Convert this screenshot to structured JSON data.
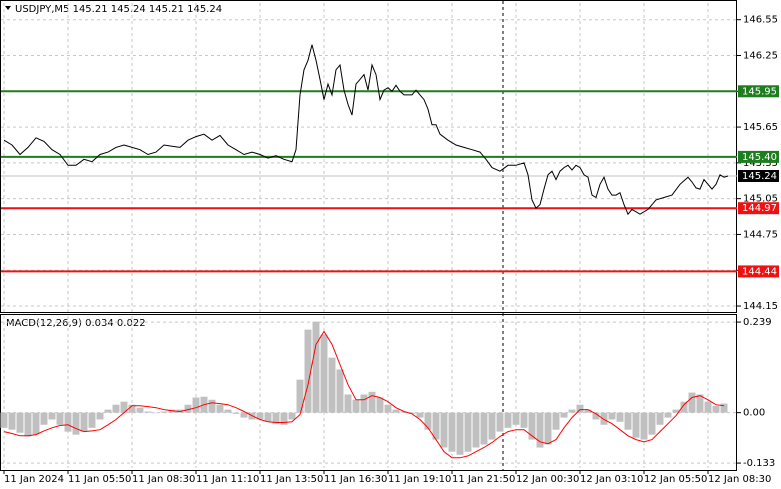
{
  "chart_data": [
    {
      "type": "line",
      "title": "USDJPY,M5  145.21 145.24 145.21 145.24",
      "color": "#000000",
      "grid": true,
      "xlim": [
        0,
        366
      ],
      "ylim": [
        144.1,
        146.69
      ],
      "yticks": [
        146.55,
        146.25,
        145.95,
        145.65,
        145.35,
        145.05,
        144.75,
        144.45,
        144.15
      ],
      "x": [
        0,
        4,
        8,
        12,
        16,
        20,
        24,
        28,
        32,
        36,
        40,
        44,
        48,
        52,
        56,
        60,
        64,
        68,
        72,
        76,
        80,
        84,
        88,
        92,
        96,
        100,
        104,
        108,
        112,
        116,
        120,
        124,
        128,
        132,
        136,
        140,
        144,
        146,
        148,
        150,
        152,
        154,
        156,
        158,
        160,
        162,
        164,
        166,
        168,
        170,
        172,
        174,
        176,
        178,
        180,
        182,
        184,
        186,
        188,
        190,
        192,
        194,
        196,
        198,
        200,
        202,
        204,
        206,
        208,
        210,
        212,
        214,
        216,
        218,
        222,
        226,
        230,
        234,
        238,
        241,
        244,
        248,
        252,
        256,
        260,
        262,
        264,
        266,
        268,
        270,
        272,
        274,
        276,
        278,
        280,
        282,
        284,
        286,
        288,
        290,
        292,
        294,
        296,
        298,
        300,
        302,
        304,
        306,
        308,
        310,
        312,
        314,
        318,
        322,
        326,
        330,
        334,
        338,
        342,
        344,
        346,
        348,
        350,
        352,
        354,
        356,
        358,
        360,
        362
      ],
      "values": [
        145.54,
        145.5,
        145.42,
        145.48,
        145.56,
        145.53,
        145.46,
        145.42,
        145.33,
        145.33,
        145.38,
        145.36,
        145.42,
        145.44,
        145.48,
        145.5,
        145.48,
        145.46,
        145.42,
        145.44,
        145.5,
        145.49,
        145.48,
        145.54,
        145.57,
        145.59,
        145.54,
        145.58,
        145.5,
        145.46,
        145.42,
        145.44,
        145.42,
        145.39,
        145.41,
        145.38,
        145.36,
        145.46,
        145.92,
        146.13,
        146.21,
        146.34,
        146.21,
        146.05,
        145.88,
        146.01,
        145.92,
        146.13,
        146.17,
        145.96,
        145.84,
        145.75,
        146.01,
        146.05,
        146.09,
        145.96,
        146.17,
        146.09,
        145.88,
        145.96,
        145.98,
        145.95,
        146.0,
        145.95,
        145.92,
        145.92,
        145.92,
        145.96,
        145.92,
        145.88,
        145.8,
        145.67,
        145.67,
        145.59,
        145.54,
        145.5,
        145.48,
        145.46,
        145.44,
        145.38,
        145.31,
        145.28,
        145.33,
        145.33,
        145.35,
        145.25,
        145.04,
        144.97,
        145.0,
        145.13,
        145.25,
        145.28,
        145.21,
        145.28,
        145.31,
        145.33,
        145.29,
        145.33,
        145.31,
        145.25,
        145.23,
        145.08,
        145.06,
        145.17,
        145.23,
        145.13,
        145.08,
        145.08,
        145.1,
        145.0,
        144.92,
        144.96,
        144.92,
        144.96,
        145.04,
        145.06,
        145.08,
        145.17,
        145.23,
        145.19,
        145.14,
        145.13,
        145.21,
        145.17,
        145.13,
        145.17,
        145.25,
        145.23,
        145.24
      ],
      "last": {
        "value": 145.24,
        "label": "145.24",
        "color": "#c0c0c0"
      },
      "hlines": [
        {
          "value": 145.95,
          "label": "145.95",
          "color": "#1e7d1e"
        },
        {
          "value": 145.4,
          "label": "145.40",
          "color": "#1e7d1e"
        },
        {
          "value": 144.97,
          "label": "144.97",
          "color": "#ee1111"
        },
        {
          "value": 144.44,
          "label": "144.44",
          "color": "#ee1111"
        }
      ]
    },
    {
      "type": "macd",
      "title": "MACD(12,26,9) 0.034 0.022",
      "grid": true,
      "xlim": [
        0,
        366
      ],
      "ylim": [
        -0.146,
        0.255
      ],
      "yticks": [
        0.239,
        {
          "value": 0,
          "label": "0.00"
        },
        -0.133
      ],
      "xticks": [
        {
          "value": 0,
          "label": "11 Jan 2024"
        },
        {
          "value": 32,
          "label": "11 Jan 05:50"
        },
        {
          "value": 64,
          "label": "11 Jan 08:30"
        },
        {
          "value": 96,
          "label": "11 Jan 11:10"
        },
        {
          "value": 128,
          "label": "11 Jan 13:50"
        },
        {
          "value": 160,
          "label": "11 Jan 16:30"
        },
        {
          "value": 192,
          "label": "11 Jan 19:10"
        },
        {
          "value": 224,
          "label": "11 Jan 21:50"
        },
        {
          "value": 256,
          "label": "12 Jan 00:30"
        },
        {
          "value": 288,
          "label": "12 Jan 03:10"
        },
        {
          "value": 320,
          "label": "12 Jan 05:50"
        },
        {
          "value": 352,
          "label": "12 Jan 08:30"
        }
      ],
      "x": [
        0,
        4,
        8,
        12,
        16,
        20,
        24,
        28,
        32,
        36,
        40,
        44,
        48,
        52,
        56,
        60,
        64,
        68,
        72,
        76,
        80,
        84,
        88,
        92,
        96,
        100,
        104,
        108,
        112,
        116,
        120,
        124,
        128,
        132,
        136,
        140,
        144,
        148,
        152,
        156,
        160,
        164,
        168,
        172,
        176,
        180,
        184,
        188,
        192,
        196,
        200,
        204,
        208,
        212,
        216,
        220,
        224,
        228,
        232,
        236,
        240,
        244,
        248,
        252,
        256,
        260,
        264,
        268,
        272,
        276,
        280,
        284,
        288,
        292,
        296,
        300,
        304,
        308,
        312,
        316,
        320,
        324,
        328,
        332,
        336,
        340,
        344,
        348,
        352,
        356,
        360
      ],
      "series": [
        {
          "kind": "bar",
          "color": "#c0c0c0",
          "values": [
            -0.04,
            -0.045,
            -0.053,
            -0.063,
            -0.058,
            -0.032,
            -0.018,
            -0.032,
            -0.05,
            -0.058,
            -0.05,
            -0.04,
            -0.018,
            0.008,
            0.021,
            0.029,
            0.021,
            0.013,
            0.003,
            0,
            0.003,
            0.008,
            0.008,
            0.021,
            0.04,
            0.042,
            0.034,
            0.021,
            0.008,
            -0.003,
            -0.013,
            -0.018,
            -0.018,
            -0.024,
            -0.029,
            -0.032,
            -0.018,
            0.087,
            0.219,
            0.24,
            0.206,
            0.145,
            0.114,
            0.048,
            0.034,
            0.048,
            0.055,
            0.04,
            0.021,
            0.008,
            0.003,
            -0.003,
            -0.013,
            -0.045,
            -0.071,
            -0.092,
            -0.103,
            -0.111,
            -0.103,
            -0.092,
            -0.084,
            -0.071,
            -0.05,
            -0.04,
            -0.032,
            -0.04,
            -0.071,
            -0.092,
            -0.084,
            -0.045,
            -0.013,
            0.008,
            0.021,
            0.008,
            -0.018,
            -0.032,
            -0.018,
            -0.024,
            -0.045,
            -0.066,
            -0.071,
            -0.058,
            -0.032,
            -0.013,
            0.008,
            0.029,
            0.053,
            0.048,
            0.029,
            0.018,
            0.024
          ]
        },
        {
          "kind": "line",
          "color": "#ff0000",
          "values": [
            -0.05,
            -0.055,
            -0.061,
            -0.061,
            -0.058,
            -0.048,
            -0.04,
            -0.034,
            -0.032,
            -0.042,
            -0.05,
            -0.048,
            -0.045,
            -0.032,
            -0.018,
            0,
            0.018,
            0.018,
            0.016,
            0.013,
            0.008,
            0.005,
            0.003,
            0.008,
            0.013,
            0.021,
            0.026,
            0.024,
            0.021,
            0.013,
            0.003,
            -0.008,
            -0.018,
            -0.024,
            -0.026,
            -0.026,
            -0.024,
            -0.005,
            0.074,
            0.18,
            0.214,
            0.18,
            0.127,
            0.074,
            0.034,
            0.034,
            0.045,
            0.04,
            0.029,
            0.013,
            0.003,
            -0.003,
            -0.018,
            -0.04,
            -0.071,
            -0.103,
            -0.119,
            -0.119,
            -0.114,
            -0.103,
            -0.092,
            -0.079,
            -0.063,
            -0.05,
            -0.045,
            -0.045,
            -0.061,
            -0.077,
            -0.082,
            -0.071,
            -0.04,
            -0.013,
            0.008,
            0.008,
            -0.003,
            -0.018,
            -0.029,
            -0.045,
            -0.061,
            -0.071,
            -0.077,
            -0.071,
            -0.05,
            -0.029,
            -0.008,
            0.021,
            0.04,
            0.045,
            0.034,
            0.021,
            0.018
          ]
        }
      ]
    }
  ]
}
